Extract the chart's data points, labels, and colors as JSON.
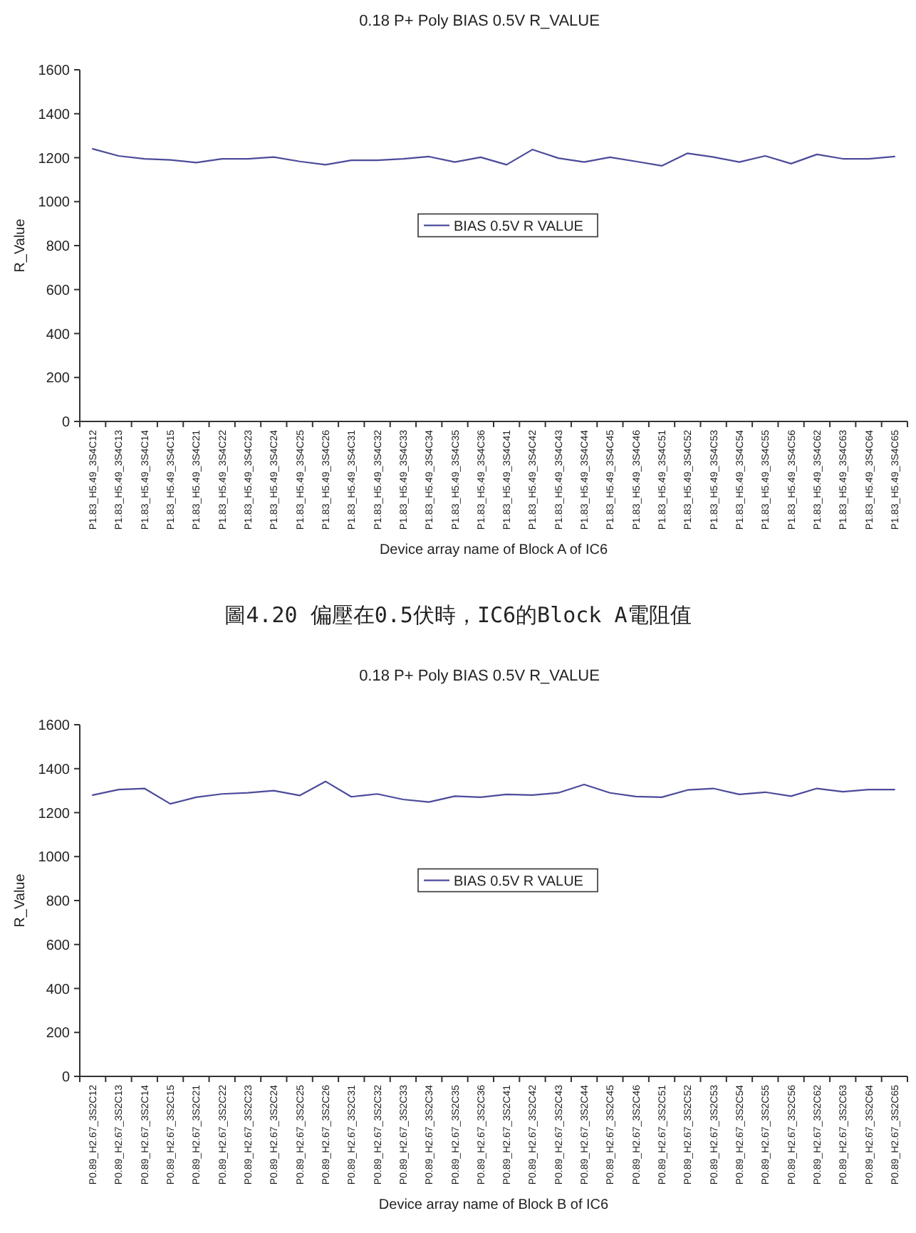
{
  "chart_data": [
    {
      "type": "line",
      "title": "0.18 P+ Poly BIAS 0.5V R_VALUE",
      "xlabel": "Device array name of Block A of IC6",
      "ylabel": "R_Value",
      "categories": [
        "P1.83_H5.49_3S4C12",
        "P1.83_H5.49_3S4C13",
        "P1.83_H5.49_3S4C14",
        "P1.83_H5.49_3S4C15",
        "P1.83_H5.49_3S4C21",
        "P1.83_H5.49_3S4C22",
        "P1.83_H5.49_3S4C23",
        "P1.83_H5.49_3S4C24",
        "P1.83_H5.49_3S4C25",
        "P1.83_H5.49_3S4C26",
        "P1.83_H5.49_3S4C31",
        "P1.83_H5.49_3S4C32",
        "P1.83_H5.49_3S4C33",
        "P1.83_H5.49_3S4C34",
        "P1.83_H5.49_3S4C35",
        "P1.83_H5.49_3S4C36",
        "P1.83_H5.49_3S4C41",
        "P1.83_H5.49_3S4C42",
        "P1.83_H5.49_3S4C43",
        "P1.83_H5.49_3S4C44",
        "P1.83_H5.49_3S4C45",
        "P1.83_H5.49_3S4C46",
        "P1.83_H5.49_3S4C51",
        "P1.83_H5.49_3S4C52",
        "P1.83_H5.49_3S4C53",
        "P1.83_H5.49_3S4C54",
        "P1.83_H5.49_3S4C55",
        "P1.83_H5.49_3S4C56",
        "P1.83_H5.49_3S4C62",
        "P1.83_H5.49_3S4C63",
        "P1.83_H5.49_3S4C64",
        "P1.83_H5.49_3S4C65"
      ],
      "series": [
        {
          "name": "BIAS 0.5V R VALUE",
          "color": "#4b4b9b",
          "values": [
            1240,
            1208,
            1195,
            1190,
            1178,
            1195,
            1195,
            1203,
            1183,
            1168,
            1188,
            1188,
            1195,
            1205,
            1180,
            1202,
            1168,
            1237,
            1198,
            1180,
            1202,
            1183,
            1163,
            1220,
            1203,
            1180,
            1208,
            1173,
            1215,
            1195,
            1195,
            1205
          ]
        }
      ],
      "ylim": [
        0,
        1600
      ],
      "yticks": [
        0,
        200,
        400,
        600,
        800,
        1000,
        1200,
        1400,
        1600
      ],
      "legend": "center",
      "marker": "none",
      "line_style": "solid",
      "annotations": [
        "圖4.20 偏壓在0.5伏時，IC6的Block A電阻值"
      ]
    },
    {
      "type": "line",
      "title": "0.18 P+ Poly BIAS 0.5V R_VALUE",
      "xlabel": "Device array name of Block B of IC6",
      "ylabel": "R_Value",
      "categories": [
        "P0.89_H2.67_3S2C12",
        "P0.89_H2.67_3S2C13",
        "P0.89_H2.67_3S2C14",
        "P0.89_H2.67_3S2C15",
        "P0.89_H2.67_3S2C21",
        "P0.89_H2.67_3S2C22",
        "P0.89_H2.67_3S2C23",
        "P0.89_H2.67_3S2C24",
        "P0.89_H2.67_3S2C25",
        "P0.89_H2.67_3S2C26",
        "P0.89_H2.67_3S2C31",
        "P0.89_H2.67_3S2C32",
        "P0.89_H2.67_3S2C33",
        "P0.89_H2.67_3S2C34",
        "P0.89_H2.67_3S2C35",
        "P0.89_H2.67_3S2C36",
        "P0.89_H2.67_3S2C41",
        "P0.89_H2.67_3S2C42",
        "P0.89_H2.67_3S2C43",
        "P0.89_H2.67_3S2C44",
        "P0.89_H2.67_3S2C45",
        "P0.89_H2.67_3S2C46",
        "P0.89_H2.67_3S2C51",
        "P0.89_H2.67_3S2C52",
        "P0.89_H2.67_3S2C53",
        "P0.89_H2.67_3S2C54",
        "P0.89_H2.67_3S2C55",
        "P0.89_H2.67_3S2C56",
        "P0.89_H2.67_3S2C62",
        "P0.89_H2.67_3S2C63",
        "P0.89_H2.67_3S2C64",
        "P0.89_H2.67_3S2C65"
      ],
      "series": [
        {
          "name": "BIAS 0.5V R VALUE",
          "color": "#4b4b9b",
          "values": [
            1280,
            1305,
            1310,
            1240,
            1270,
            1285,
            1290,
            1300,
            1278,
            1342,
            1272,
            1285,
            1260,
            1248,
            1275,
            1270,
            1283,
            1280,
            1290,
            1328,
            1290,
            1273,
            1270,
            1303,
            1310,
            1283,
            1293,
            1275,
            1310,
            1295,
            1305,
            1305
          ]
        }
      ],
      "ylim": [
        0,
        1600
      ],
      "yticks": [
        0,
        200,
        400,
        600,
        800,
        1000,
        1200,
        1400,
        1600
      ],
      "legend": "center",
      "marker": "none",
      "line_style": "solid"
    }
  ]
}
